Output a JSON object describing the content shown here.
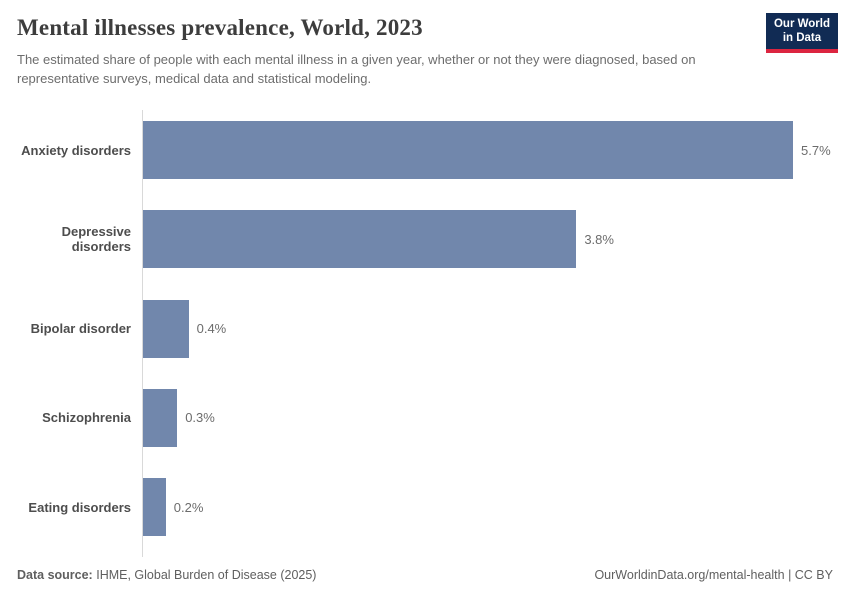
{
  "header": {
    "title": "Mental illnesses prevalence, World, 2023",
    "subtitle": "The estimated share of people with each mental illness in a given year, whether or not they were diagnosed, based on representative surveys, medical data and statistical modeling."
  },
  "logo": {
    "line1": "Our World",
    "line2": "in Data",
    "background_color": "#112b54",
    "accent_color": "#dc2540"
  },
  "chart_data": {
    "type": "bar",
    "orientation": "horizontal",
    "title": "Mental illnesses prevalence, World, 2023",
    "categories": [
      "Anxiety disorders",
      "Depressive disorders",
      "Bipolar disorder",
      "Schizophrenia",
      "Eating disorders"
    ],
    "values": [
      5.7,
      3.8,
      0.4,
      0.3,
      0.2
    ],
    "value_labels": [
      "5.7%",
      "3.8%",
      "0.4%",
      "0.3%",
      "0.2%"
    ],
    "unit": "%",
    "xlim": [
      0,
      5.7
    ],
    "grid": false,
    "legend": "none",
    "bar_color": "#7187ac",
    "axis_color": "#d9d9d9"
  },
  "footer": {
    "datasource_label": "Data source:",
    "datasource_value": "IHME, Global Burden of Disease (2025)",
    "right_text": "OurWorldinData.org/mental-health | CC BY"
  }
}
